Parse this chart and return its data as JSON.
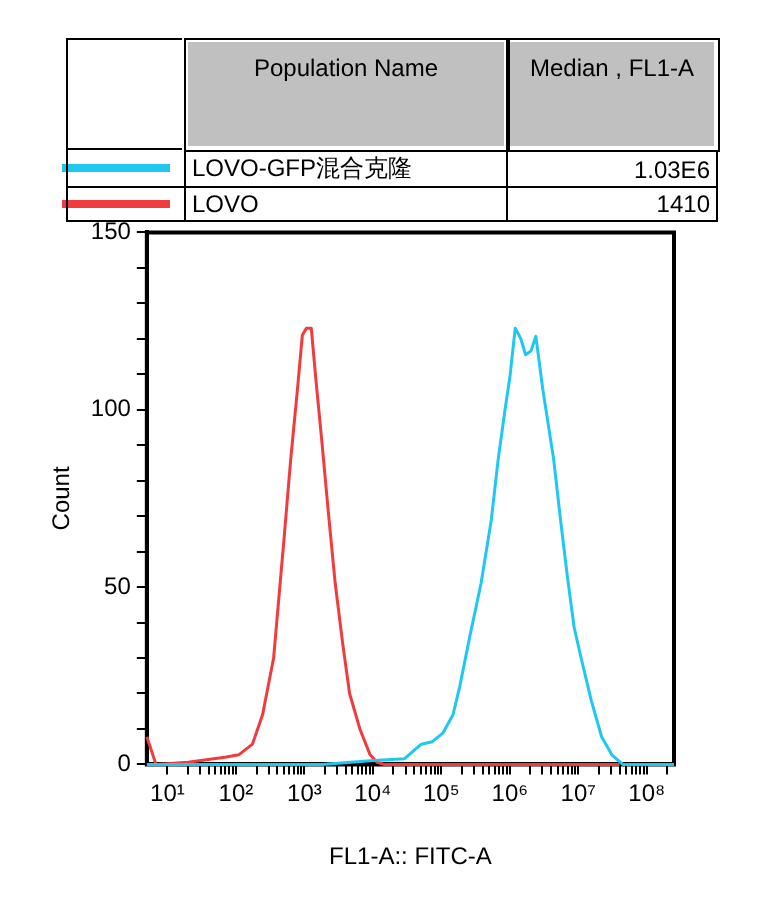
{
  "chart_data": {
    "type": "line",
    "xlabel": "FL1-A:: FITC-A",
    "ylabel": "Count",
    "legend_title": "Population Name",
    "legend": "top",
    "marker": "none",
    "grid": false,
    "log": "x",
    "annotations": [
      "Median , FL1-A",
      "1.03E6",
      "1410"
    ],
    "xlim": [
      5,
      250000000
    ],
    "ylim": [
      0,
      150
    ],
    "xticks": [
      {
        "value": 10,
        "label": "10¹"
      },
      {
        "value": 20,
        "label": null
      },
      {
        "value": 30,
        "label": null
      },
      {
        "value": 40,
        "label": null
      },
      {
        "value": 50,
        "label": null
      },
      {
        "value": 60,
        "label": null
      },
      {
        "value": 70,
        "label": null
      },
      {
        "value": 80,
        "label": null
      },
      {
        "value": 90,
        "label": null
      },
      {
        "value": 100,
        "label": "10²"
      },
      {
        "value": 200,
        "label": null
      },
      {
        "value": 300,
        "label": null
      },
      {
        "value": 400,
        "label": null
      },
      {
        "value": 500,
        "label": null
      },
      {
        "value": 600,
        "label": null
      },
      {
        "value": 700,
        "label": null
      },
      {
        "value": 800,
        "label": null
      },
      {
        "value": 900,
        "label": null
      },
      {
        "value": 1000,
        "label": "10³"
      },
      {
        "value": 2000,
        "label": null
      },
      {
        "value": 3000,
        "label": null
      },
      {
        "value": 4000,
        "label": null
      },
      {
        "value": 5000,
        "label": null
      },
      {
        "value": 6000,
        "label": null
      },
      {
        "value": 7000,
        "label": null
      },
      {
        "value": 8000,
        "label": null
      },
      {
        "value": 9000,
        "label": null
      },
      {
        "value": 10000,
        "label": "10⁴"
      },
      {
        "value": 20000,
        "label": null
      },
      {
        "value": 30000,
        "label": null
      },
      {
        "value": 40000,
        "label": null
      },
      {
        "value": 50000,
        "label": null
      },
      {
        "value": 60000,
        "label": null
      },
      {
        "value": 70000,
        "label": null
      },
      {
        "value": 80000,
        "label": null
      },
      {
        "value": 90000,
        "label": null
      },
      {
        "value": 100000,
        "label": "10⁵"
      },
      {
        "value": 200000,
        "label": null
      },
      {
        "value": 300000,
        "label": null
      },
      {
        "value": 400000,
        "label": null
      },
      {
        "value": 500000,
        "label": null
      },
      {
        "value": 600000,
        "label": null
      },
      {
        "value": 700000,
        "label": null
      },
      {
        "value": 800000,
        "label": null
      },
      {
        "value": 900000,
        "label": null
      },
      {
        "value": 1000000,
        "label": "10⁶"
      },
      {
        "value": 2000000,
        "label": null
      },
      {
        "value": 3000000,
        "label": null
      },
      {
        "value": 4000000,
        "label": null
      },
      {
        "value": 5000000,
        "label": null
      },
      {
        "value": 6000000,
        "label": null
      },
      {
        "value": 7000000,
        "label": null
      },
      {
        "value": 8000000,
        "label": null
      },
      {
        "value": 9000000,
        "label": null
      },
      {
        "value": 10000000,
        "label": "10⁷"
      },
      {
        "value": 20000000,
        "label": null
      },
      {
        "value": 30000000,
        "label": null
      },
      {
        "value": 40000000,
        "label": null
      },
      {
        "value": 50000000,
        "label": null
      },
      {
        "value": 60000000,
        "label": null
      },
      {
        "value": 70000000,
        "label": null
      },
      {
        "value": 80000000,
        "label": null
      },
      {
        "value": 90000000,
        "label": null
      },
      {
        "value": 100000000,
        "label": "10⁸"
      },
      {
        "value": 200000000,
        "label": null
      }
    ],
    "yticks": [
      0,
      {
        "value": 10,
        "label": null
      },
      {
        "value": 20,
        "label": null
      },
      {
        "value": 30,
        "label": null
      },
      {
        "value": 40,
        "label": null
      },
      50,
      {
        "value": 60,
        "label": null
      },
      {
        "value": 70,
        "label": null
      },
      {
        "value": 80,
        "label": null
      },
      {
        "value": 90,
        "label": null
      },
      100,
      {
        "value": 110,
        "label": null
      },
      {
        "value": 120,
        "label": null
      },
      {
        "value": 130,
        "label": null
      },
      {
        "value": 140,
        "label": null
      },
      150
    ],
    "series": [
      {
        "name": "LOVO-GFP混合克隆",
        "color": "#1ec8f0",
        "x": [
          5,
          1800,
          9100,
          29000,
          51000,
          74000,
          105000,
          148000,
          186000,
          263000,
          380000,
          537000,
          676000,
          851000,
          1000000,
          1200000,
          1450000,
          1700000,
          2040000,
          2400000,
          3020000,
          4370000,
          5500000,
          6920000,
          8710000,
          11000000,
          15500000,
          21900000,
          30900000,
          44700000,
          250000000
        ],
        "values": [
          0,
          0,
          1,
          1.6,
          5.7,
          6.4,
          8.8,
          14,
          22,
          36.5,
          51,
          69,
          86,
          100,
          109,
          123,
          120,
          115.5,
          116.6,
          120.7,
          106,
          86,
          69,
          53,
          38.6,
          30,
          18,
          7.8,
          2.7,
          0,
          0
        ]
      },
      {
        "name": "LOVO",
        "color": "#f03c3c",
        "x": [
          5,
          6.8,
          20,
          69,
          110,
          174,
          245,
          355,
          501,
          631,
          794,
          933,
          1070,
          1260,
          1480,
          1780,
          2240,
          2820,
          3630,
          4570,
          6460,
          9120,
          11500,
          14500,
          40000000
        ],
        "values": [
          7.8,
          0,
          0.6,
          2,
          2.7,
          5.7,
          14,
          30,
          63,
          86,
          106,
          121,
          123,
          123,
          108,
          92,
          71,
          51,
          34,
          20,
          10,
          2.7,
          0.6,
          0,
          0
        ]
      }
    ]
  }
}
